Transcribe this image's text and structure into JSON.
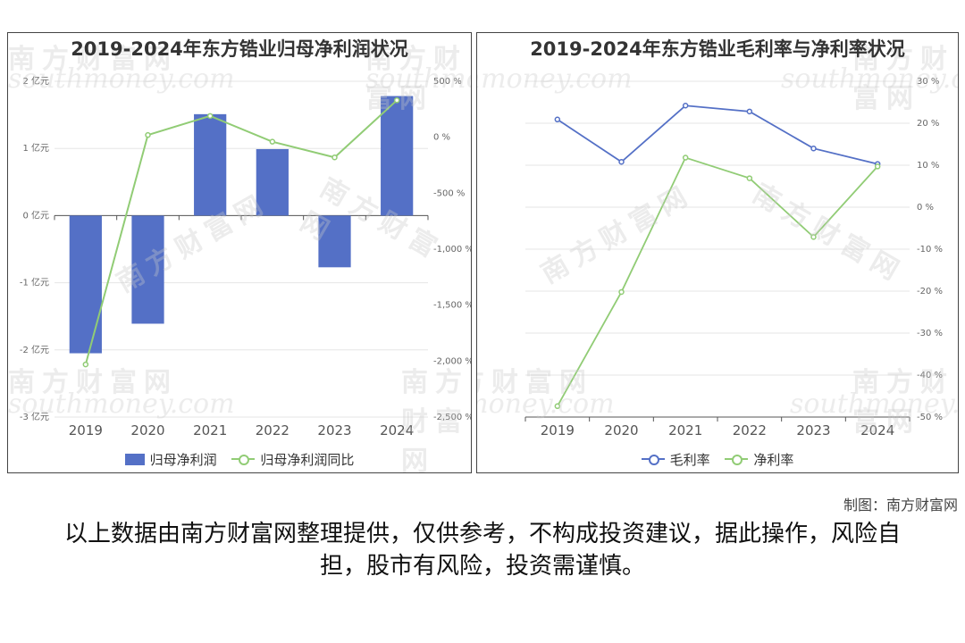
{
  "chart_data": [
    {
      "type": "bar",
      "title": "2019-2024年东方锆业归母净利润状况",
      "categories": [
        "2019",
        "2020",
        "2021",
        "2022",
        "2023",
        "2024"
      ],
      "series": [
        {
          "name": "归母净利润",
          "type": "bar",
          "axis": "left",
          "color": "#5470c6",
          "values": [
            -2.05,
            -1.61,
            1.51,
            0.99,
            -0.77,
            1.78
          ]
        },
        {
          "name": "归母净利润同比",
          "type": "line",
          "axis": "right",
          "color": "#91cc75",
          "values": [
            -2030,
            20,
            190,
            -40,
            -180,
            330
          ]
        }
      ],
      "y_left": {
        "min": -3,
        "max": 2,
        "ticks": [
          "2 亿元",
          "1 亿元",
          "0 亿元",
          "-1 亿元",
          "-2 亿元",
          "-3 亿元"
        ]
      },
      "y_right": {
        "min": -2500,
        "max": 500,
        "ticks": [
          "500 %",
          "0 %",
          "-500 %",
          "-1,000 %",
          "-1,500 %",
          "-2,000 %",
          "-2,500 %"
        ]
      },
      "grid": true,
      "legend_position": "bottom"
    },
    {
      "type": "line",
      "title": "2019-2024年东方锆业毛利率与净利率状况",
      "categories": [
        "2019",
        "2020",
        "2021",
        "2022",
        "2023",
        "2024"
      ],
      "series": [
        {
          "name": "毛利率",
          "color": "#5470c6",
          "values": [
            20.9,
            10.8,
            24.2,
            22.8,
            14.0,
            10.3
          ]
        },
        {
          "name": "净利率",
          "color": "#91cc75",
          "values": [
            -47.4,
            -20.2,
            11.8,
            6.9,
            -7.1,
            9.7
          ]
        }
      ],
      "y_right": {
        "min": -50,
        "max": 30,
        "ticks": [
          "30 %",
          "20 %",
          "10 %",
          "0 %",
          "-10 %",
          "-20 %",
          "-30 %",
          "-40 %",
          "-50 %"
        ]
      },
      "grid": true,
      "legend_position": "bottom"
    }
  ],
  "watermark": {
    "cn": "南方财富网",
    "en": "southmoney.com"
  },
  "source": "制图：南方财富网",
  "disclaimer": "以上数据由南方财富网整理提供，仅供参考，不构成投资建议，据此操作，风险自担，股市有风险，投资需谨慎。"
}
